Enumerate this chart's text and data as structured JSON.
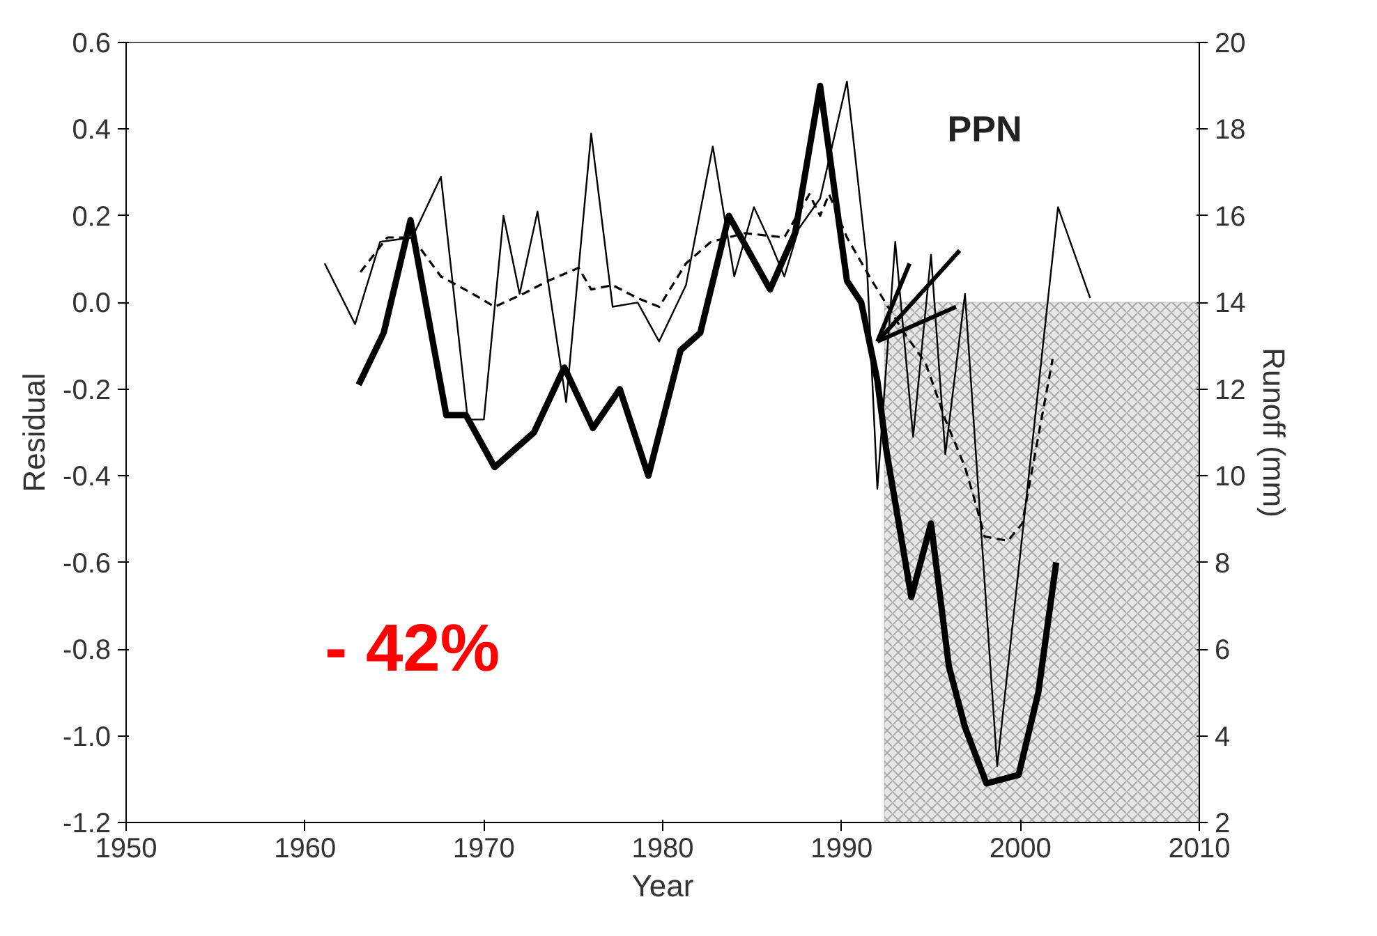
{
  "chart_data": {
    "type": "line",
    "xlabel": "Year",
    "ylabel": "Residual",
    "y2label": "Runoff (mm)",
    "annotations": [
      "PPN",
      "- 42%"
    ],
    "xlim": [
      1950,
      2010
    ],
    "xticks": [
      1950,
      1960,
      1970,
      1980,
      1990,
      2000,
      2010
    ],
    "ylim": [
      -1.2,
      0.6
    ],
    "yticks": [
      {
        "value": -1.2,
        "label": "-1.2"
      },
      {
        "value": -1.0,
        "label": "-1.0"
      },
      {
        "value": -0.8,
        "label": "-0.8"
      },
      {
        "value": -0.6,
        "label": "-0.6"
      },
      {
        "value": -0.4,
        "label": "-0.4"
      },
      {
        "value": -0.2,
        "label": "-0.2"
      },
      {
        "value": 0,
        "label": "0.0"
      },
      {
        "value": 0.2,
        "label": "0.2"
      },
      {
        "value": 0.4,
        "label": "0.4"
      },
      {
        "value": 0.6,
        "label": "0.6"
      }
    ],
    "y2lim": [
      2,
      20
    ],
    "y2ticks": [
      2,
      4,
      6,
      8,
      10,
      12,
      14,
      16,
      18,
      20
    ],
    "grid": false,
    "marker": "none",
    "bands": [
      {
        "axis": "x",
        "from": 1992.4,
        "to": 2010,
        "color": "#d9d9d9"
      }
    ],
    "series": [
      {
        "color": "#000000",
        "line_style": "solid",
        "x": [
          1963,
          1964.4,
          1965.9,
          1967.9,
          1969,
          1970.6,
          1972.8,
          1974.5,
          1976.1,
          1977.6,
          1979.2,
          1981,
          1982.1,
          1983.7,
          1986,
          1987.4,
          1988.8,
          1990.3,
          1991.1,
          1992,
          1992.5,
          1993.9,
          1995,
          1996,
          1996.9,
          1998.1,
          1999.9,
          2001,
          2002
        ],
        "values": [
          -0.19,
          -0.07,
          0.19,
          -0.26,
          -0.26,
          -0.38,
          -0.3,
          -0.15,
          -0.29,
          -0.2,
          -0.4,
          -0.11,
          -0.07,
          0.2,
          0.03,
          0.16,
          0.5,
          0.05,
          0.0,
          -0.18,
          -0.34,
          -0.68,
          -0.51,
          -0.84,
          -0.98,
          -1.11,
          -1.09,
          -0.9,
          -0.6
        ]
      },
      {
        "color": "#000000",
        "line_style": "solid",
        "axis": "y2",
        "x": [
          1961.1,
          1962.8,
          1964.2,
          1966,
          1967.6,
          1969.1,
          1970,
          1971.1,
          1972,
          1973,
          1974.6,
          1976,
          1977.2,
          1978.6,
          1979.8,
          1981.3,
          1982.8,
          1984,
          1985.1,
          1986,
          1986.8,
          1987.6,
          1988.8,
          1990.3,
          1991.4,
          1992,
          1993,
          1994,
          1995,
          1995.8,
          1996.9,
          1998.7,
          2002.1,
          2003.9
        ],
        "values": [
          14.9,
          13.5,
          15.4,
          15.5,
          16.9,
          11.3,
          11.3,
          16.0,
          14.2,
          16.1,
          11.7,
          17.9,
          13.9,
          14.0,
          13.1,
          14.4,
          17.6,
          14.6,
          16.2,
          15.4,
          14.6,
          15.7,
          16.4,
          19.1,
          15.0,
          9.7,
          15.4,
          10.9,
          15.1,
          10.5,
          14.2,
          3.3,
          16.2,
          14.1
        ]
      },
      {
        "color": "#000000",
        "line_style": "dashed",
        "x": [
          1963.1,
          1964.6,
          1966,
          1967.6,
          1968.5,
          1969.8,
          1970.6,
          1972.2,
          1973.6,
          1975.3,
          1976,
          1977.2,
          1978.6,
          1979.8,
          1981.3,
          1982.7,
          1984.6,
          1986.8,
          1988.2,
          1988.8,
          1989.3,
          1990.3,
          1991.7,
          1993.5,
          1994.7,
          1995.8,
          1996.9,
          1997.4,
          1998,
          1999.3,
          2000.1,
          2001.8
        ],
        "values": [
          0.07,
          0.15,
          0.15,
          0.06,
          0.04,
          0.01,
          -0.01,
          0.02,
          0.05,
          0.08,
          0.03,
          0.04,
          0.01,
          -0.01,
          0.09,
          0.14,
          0.16,
          0.15,
          0.25,
          0.2,
          0.25,
          0.15,
          0.05,
          -0.07,
          -0.14,
          -0.27,
          -0.38,
          -0.45,
          -0.54,
          -0.55,
          -0.51,
          -0.13
        ]
      },
      {
        "color": "#000000",
        "line_style": "solid",
        "x": [
          1992,
          1996.6
        ],
        "values": [
          -0.09,
          0.12
        ]
      },
      {
        "color": "#000000",
        "line_style": "solid",
        "x": [
          1992,
          1996.4
        ],
        "values": [
          -0.09,
          -0.01
        ]
      },
      {
        "color": "#000000",
        "line_style": "solid",
        "x": [
          1992,
          1993.8
        ],
        "values": [
          -0.09,
          0.09
        ]
      }
    ]
  }
}
